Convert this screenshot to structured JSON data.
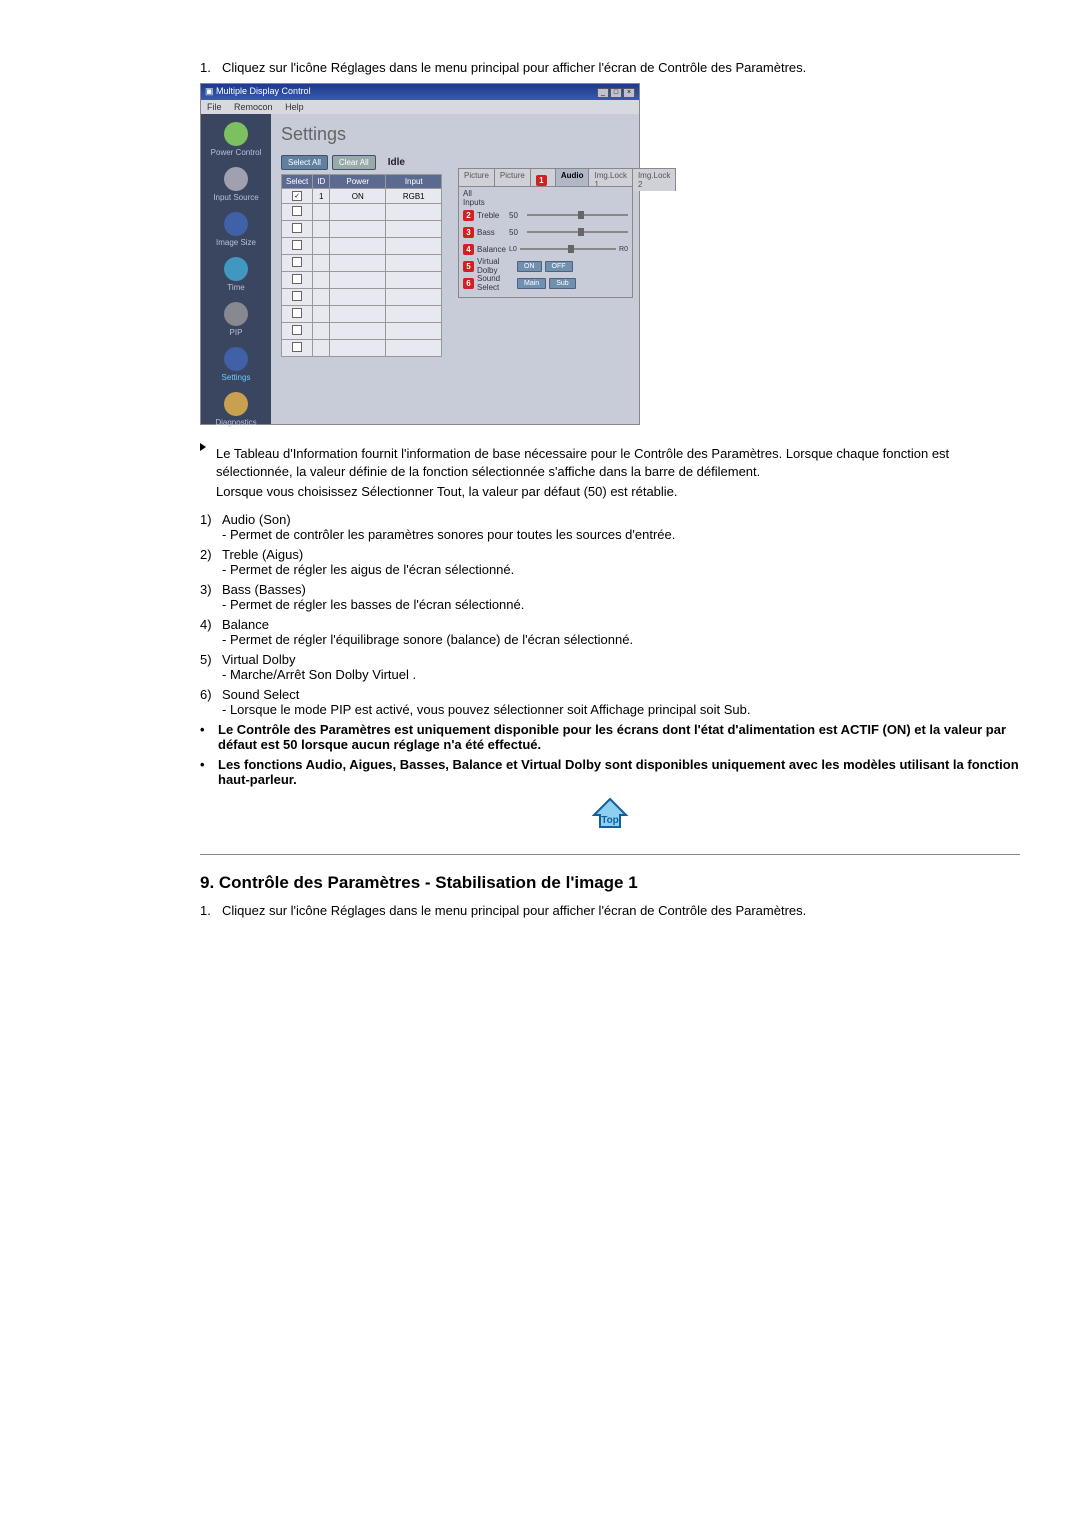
{
  "step1": "Cliquez sur l'icône Réglages dans le menu principal pour afficher l'écran de Contrôle des Paramètres.",
  "win": {
    "title": "Multiple Display Control",
    "menu": {
      "file": "File",
      "remocon": "Remocon",
      "help": "Help"
    },
    "heading": "Settings",
    "select_all": "Select All",
    "clear_all": "Clear All",
    "idle": "Idle",
    "sidebar": [
      {
        "label": "Power Control",
        "color": "#7cc060"
      },
      {
        "label": "Input Source",
        "color": "#a0a0b0"
      },
      {
        "label": "Image Size",
        "color": "#4060a8"
      },
      {
        "label": "Time",
        "color": "#4098c0"
      },
      {
        "label": "PIP",
        "color": "#888890"
      },
      {
        "label": "Settings",
        "color": "#4060a8",
        "active": true
      },
      {
        "label": "Diagnostics",
        "color": "#c8a050"
      }
    ],
    "table": {
      "cols": {
        "select": "Select",
        "id": "ID",
        "power": "Power",
        "input": "Input"
      },
      "row": {
        "id": "1",
        "power": "ON",
        "input": "RGB1"
      }
    },
    "tabs": {
      "picture": "Picture",
      "picture_pc": "Picture",
      "audio": "Audio",
      "lock1": "Img.Lock 1",
      "lock2": "Img.Lock 2"
    },
    "panel": {
      "all_inputs": "All Inputs",
      "treble": "Treble",
      "treble_v": "50",
      "bass": "Bass",
      "bass_v": "50",
      "balance": "Balance",
      "bal_l": "L",
      "bal_r": "R",
      "bal_v": "0",
      "bal_rv": "0",
      "vdolby": "Virtual Dolby",
      "on": "ON",
      "off": "OFF",
      "sselect": "Sound Select",
      "main": "Main",
      "sub": "Sub"
    }
  },
  "markers": {
    "m1": "1",
    "m2": "2",
    "m3": "3",
    "m4": "4",
    "m5": "5",
    "m6": "6"
  },
  "info_p1": "Le Tableau d'Information fournit l'information de base nécessaire pour le Contrôle des Paramètres. Lorsque chaque fonction est sélectionnée, la valeur définie de la fonction sélectionnée s'affiche dans la barre de défilement.",
  "info_p2": "Lorsque vous choisissez Sélectionner Tout, la valeur par défaut (50) est rétablie.",
  "items": [
    {
      "n": "1)",
      "t": "Audio (Son)",
      "s": "- Permet de contrôler les paramètres sonores pour toutes les sources d'entrée."
    },
    {
      "n": "2)",
      "t": "Treble (Aigus)",
      "s": "- Permet de régler les aigus de l'écran sélectionné."
    },
    {
      "n": "3)",
      "t": "Bass (Basses)",
      "s": "- Permet de régler les basses de l'écran sélectionné."
    },
    {
      "n": "4)",
      "t": "Balance",
      "s": "- Permet de régler l'équilibrage sonore (balance) de l'écran sélectionné."
    },
    {
      "n": "5)",
      "t": "Virtual Dolby",
      "s": "- Marche/Arrêt Son Dolby Virtuel ."
    },
    {
      "n": "6)",
      "t": "Sound Select",
      "s": "- Lorsque le mode PIP est activé, vous pouvez sélectionner soit Affichage principal soit Sub."
    }
  ],
  "note1": "Le Contrôle des Paramètres est uniquement disponible pour les écrans dont l'état d'alimentation est ACTIF (ON) et la valeur par défaut est 50 lorsque aucun réglage n'a été effectué.",
  "note2": "Les fonctions Audio, Aigues, Basses, Balance et Virtual Dolby sont disponibles uniquement avec les modèles utilisant la fonction haut-parleur.",
  "top_label": "Top",
  "sec9_title": "9. Contrôle des Paramètres - Stabilisation de l'image 1",
  "sec9_step1": "Cliquez sur l'icône Réglages dans le menu principal pour afficher l'écran de Contrôle des Paramètres."
}
